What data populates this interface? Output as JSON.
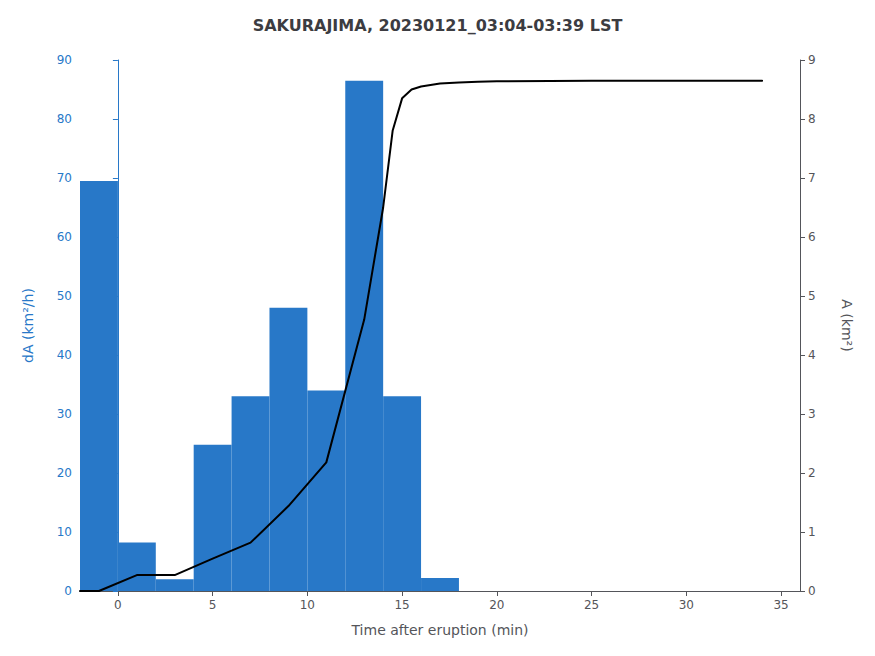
{
  "chart_data": {
    "type": "bar",
    "title": "SAKURAJIMA, 20230121_03:04-03:39 LST",
    "xlabel": "Time after eruption (min)",
    "ylabel": "dA (km²/h)",
    "y2label": "A (km²)",
    "series": [
      {
        "type": "bar",
        "color": "#2878c8",
        "x": [
          -1,
          1,
          3,
          5,
          7,
          9,
          11,
          13,
          15,
          17
        ],
        "values": [
          69.5,
          8.2,
          2.0,
          24.8,
          33.0,
          48.0,
          34.0,
          86.5,
          33.0,
          2.2
        ]
      },
      {
        "type": "line",
        "axis": "y2",
        "color": "#000000",
        "x": [
          -2,
          -1,
          1,
          3,
          5,
          7,
          9,
          11,
          13,
          14,
          14.5,
          15,
          15.5,
          16,
          17,
          18,
          19,
          20,
          25,
          30,
          34
        ],
        "values": [
          0.0,
          0.0,
          0.27,
          0.27,
          0.55,
          0.82,
          1.44,
          2.18,
          4.6,
          6.5,
          7.8,
          8.35,
          8.5,
          8.55,
          8.6,
          8.62,
          8.63,
          8.64,
          8.65,
          8.65,
          8.65
        ]
      }
    ],
    "xlim": [
      -2,
      36
    ],
    "xticks": [
      0,
      5,
      10,
      15,
      20,
      25,
      30,
      35
    ],
    "ylim": [
      0,
      90
    ],
    "yticks": [
      0,
      10,
      20,
      30,
      40,
      50,
      60,
      70,
      80,
      90
    ],
    "y2lim": [
      0,
      9
    ],
    "y2ticks": [
      0,
      1,
      2,
      3,
      4,
      5,
      6,
      7,
      8,
      9
    ],
    "grid": false
  }
}
